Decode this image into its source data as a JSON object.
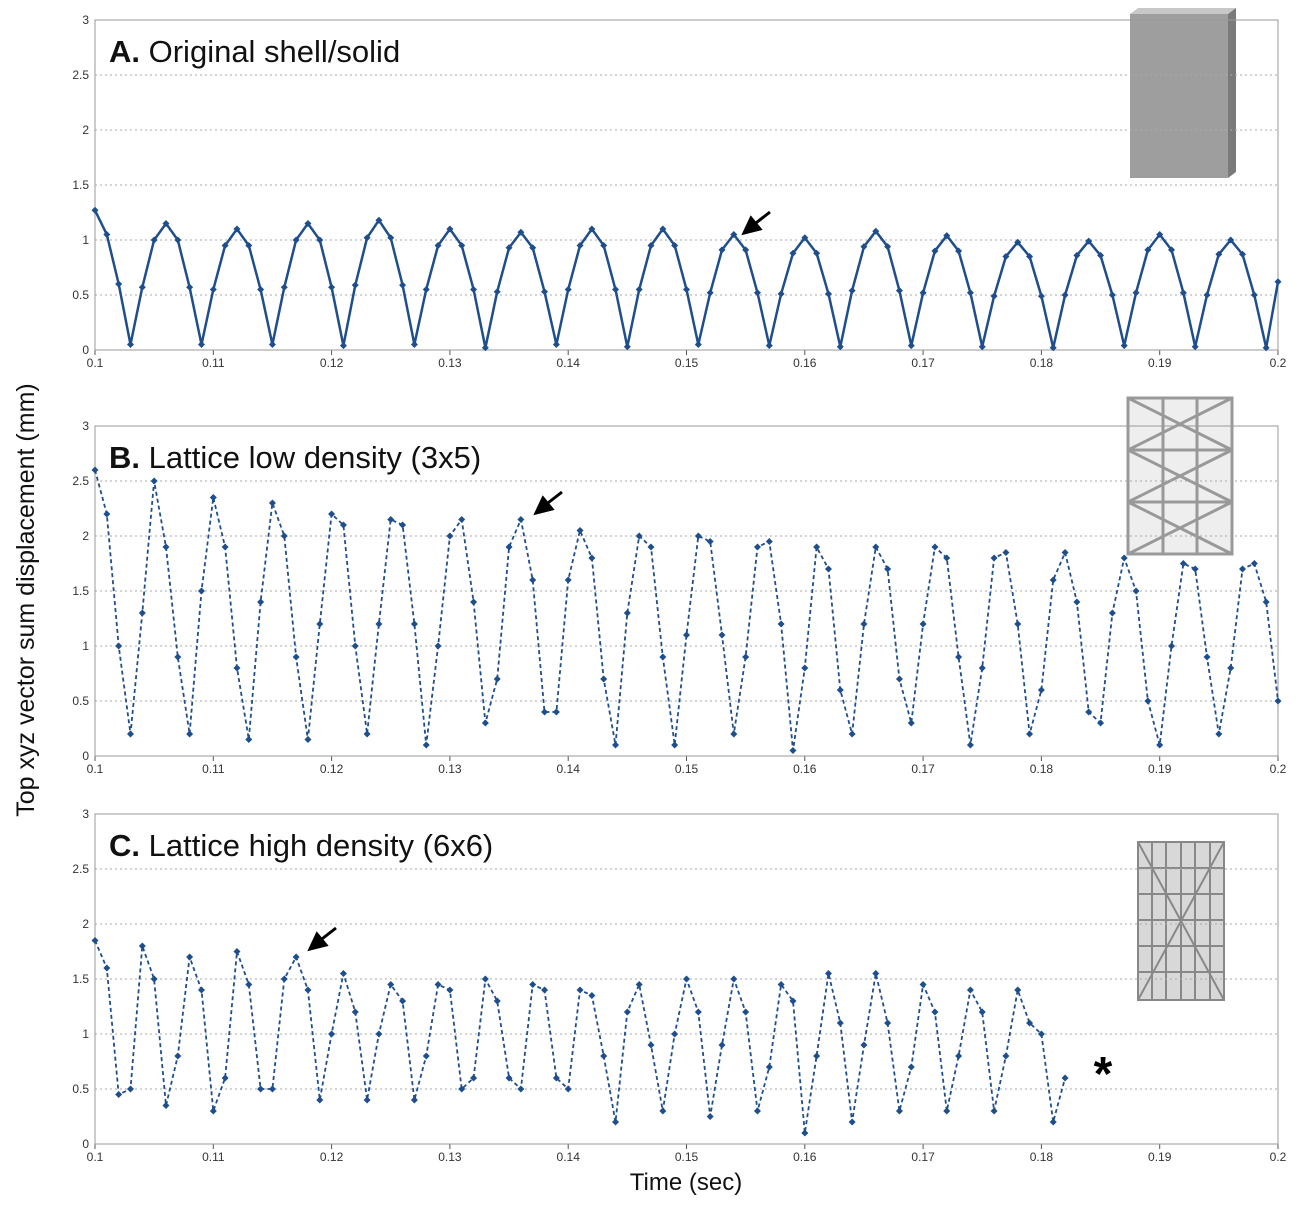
{
  "y_label": "Top xyz vector sum displacement (mm)",
  "x_label": "Time (sec)",
  "chart_data": [
    {
      "type": "line",
      "label": "A.",
      "title": "Original shell/solid",
      "color": "#1f4e8c",
      "line_style": "solid",
      "grid": true,
      "xlim": [
        0.1,
        0.2
      ],
      "xticks": [
        0.1,
        0.11,
        0.12,
        0.13,
        0.14,
        0.15,
        0.16,
        0.17,
        0.18,
        0.19,
        0.2
      ],
      "ylim": [
        0,
        3
      ],
      "yticks": [
        0,
        0.5,
        1,
        1.5,
        2,
        2.5,
        3
      ],
      "x": [
        0.1,
        0.101,
        0.102,
        0.103,
        0.104,
        0.105,
        0.106,
        0.107,
        0.108,
        0.109,
        0.11,
        0.111,
        0.112,
        0.113,
        0.114,
        0.115,
        0.116,
        0.117,
        0.118,
        0.119,
        0.12,
        0.121,
        0.122,
        0.123,
        0.124,
        0.125,
        0.126,
        0.127,
        0.128,
        0.129,
        0.13,
        0.131,
        0.132,
        0.133,
        0.134,
        0.135,
        0.136,
        0.137,
        0.138,
        0.139,
        0.14,
        0.141,
        0.142,
        0.143,
        0.144,
        0.145,
        0.146,
        0.147,
        0.148,
        0.149,
        0.15,
        0.151,
        0.152,
        0.153,
        0.154,
        0.155,
        0.156,
        0.157,
        0.158,
        0.159,
        0.16,
        0.161,
        0.162,
        0.163,
        0.164,
        0.165,
        0.166,
        0.167,
        0.168,
        0.169,
        0.17,
        0.171,
        0.172,
        0.173,
        0.174,
        0.175,
        0.176,
        0.177,
        0.178,
        0.179,
        0.18,
        0.181,
        0.182,
        0.183,
        0.184,
        0.185,
        0.186,
        0.187,
        0.188,
        0.189,
        0.19,
        0.191,
        0.192,
        0.193,
        0.194,
        0.195,
        0.196,
        0.197,
        0.198,
        0.199,
        0.2
      ],
      "values": [
        1.27,
        1.05,
        0.6,
        0.05,
        0.57,
        1.0,
        1.15,
        1.0,
        0.57,
        0.05,
        0.55,
        0.95,
        1.1,
        0.95,
        0.55,
        0.05,
        0.57,
        1.0,
        1.15,
        1.0,
        0.57,
        0.04,
        0.59,
        1.02,
        1.18,
        1.02,
        0.59,
        0.05,
        0.55,
        0.95,
        1.1,
        0.95,
        0.55,
        0.02,
        0.53,
        0.93,
        1.07,
        0.93,
        0.53,
        0.05,
        0.55,
        0.95,
        1.1,
        0.95,
        0.55,
        0.03,
        0.55,
        0.95,
        1.1,
        0.95,
        0.55,
        0.05,
        0.52,
        0.91,
        1.05,
        0.91,
        0.52,
        0.04,
        0.51,
        0.88,
        1.02,
        0.88,
        0.51,
        0.03,
        0.54,
        0.94,
        1.08,
        0.94,
        0.54,
        0.04,
        0.52,
        0.9,
        1.04,
        0.9,
        0.52,
        0.03,
        0.49,
        0.85,
        0.98,
        0.85,
        0.49,
        0.02,
        0.5,
        0.86,
        0.99,
        0.86,
        0.5,
        0.04,
        0.52,
        0.91,
        1.05,
        0.91,
        0.52,
        0.03,
        0.5,
        0.87,
        1.0,
        0.87,
        0.5,
        0.02,
        0.62
      ]
    },
    {
      "type": "line",
      "label": "B.",
      "title": "Lattice low density (3x5)",
      "color": "#1f4e8c",
      "line_style": "dashed",
      "grid": true,
      "xlim": [
        0.1,
        0.2
      ],
      "xticks": [
        0.1,
        0.11,
        0.12,
        0.13,
        0.14,
        0.15,
        0.16,
        0.17,
        0.18,
        0.19,
        0.2
      ],
      "ylim": [
        0,
        3
      ],
      "yticks": [
        0,
        0.5,
        1,
        1.5,
        2,
        2.5,
        3
      ],
      "x": [
        0.1,
        0.101,
        0.102,
        0.103,
        0.104,
        0.105,
        0.106,
        0.107,
        0.108,
        0.109,
        0.11,
        0.111,
        0.112,
        0.113,
        0.114,
        0.115,
        0.116,
        0.117,
        0.118,
        0.119,
        0.12,
        0.121,
        0.122,
        0.123,
        0.124,
        0.125,
        0.126,
        0.127,
        0.128,
        0.129,
        0.13,
        0.131,
        0.132,
        0.133,
        0.134,
        0.135,
        0.136,
        0.137,
        0.138,
        0.139,
        0.14,
        0.141,
        0.142,
        0.143,
        0.144,
        0.145,
        0.146,
        0.147,
        0.148,
        0.149,
        0.15,
        0.151,
        0.152,
        0.153,
        0.154,
        0.155,
        0.156,
        0.157,
        0.158,
        0.159,
        0.16,
        0.161,
        0.162,
        0.163,
        0.164,
        0.165,
        0.166,
        0.167,
        0.168,
        0.169,
        0.17,
        0.171,
        0.172,
        0.173,
        0.174,
        0.175,
        0.176,
        0.177,
        0.178,
        0.179,
        0.18,
        0.181,
        0.182,
        0.183,
        0.184,
        0.185,
        0.186,
        0.187,
        0.188,
        0.189,
        0.19,
        0.191,
        0.192,
        0.193,
        0.194,
        0.195,
        0.196,
        0.197,
        0.198,
        0.199,
        0.2
      ],
      "values": [
        2.6,
        2.2,
        1.0,
        0.2,
        1.3,
        2.5,
        1.9,
        0.9,
        0.2,
        1.5,
        2.35,
        1.9,
        0.8,
        0.15,
        1.4,
        2.3,
        2.0,
        0.9,
        0.15,
        1.2,
        2.2,
        2.1,
        1.0,
        0.2,
        1.2,
        2.15,
        2.1,
        1.2,
        0.1,
        1.0,
        2.0,
        2.15,
        1.4,
        0.3,
        0.7,
        1.9,
        2.15,
        1.6,
        0.4,
        0.4,
        1.6,
        2.05,
        1.8,
        0.7,
        0.1,
        1.3,
        2.0,
        1.9,
        0.9,
        0.1,
        1.1,
        2.0,
        1.95,
        1.1,
        0.2,
        0.9,
        1.9,
        1.95,
        1.2,
        0.05,
        0.8,
        1.9,
        1.7,
        0.6,
        0.2,
        1.2,
        1.9,
        1.7,
        0.7,
        0.3,
        1.2,
        1.9,
        1.8,
        0.9,
        0.1,
        0.8,
        1.8,
        1.85,
        1.2,
        0.2,
        0.6,
        1.6,
        1.85,
        1.4,
        0.4,
        0.3,
        1.3,
        1.8,
        1.5,
        0.5,
        0.1,
        1.0,
        1.75,
        1.7,
        0.9,
        0.2,
        0.8,
        1.7,
        1.75,
        1.4,
        0.5
      ]
    },
    {
      "type": "line",
      "label": "C.",
      "title": "Lattice high density (6x6)",
      "annotation": "*",
      "color": "#1f4e8c",
      "line_style": "dashed",
      "grid": true,
      "xlim": [
        0.1,
        0.2
      ],
      "xticks": [
        0.1,
        0.11,
        0.12,
        0.13,
        0.14,
        0.15,
        0.16,
        0.17,
        0.18,
        0.19,
        0.2
      ],
      "ylim": [
        0,
        3
      ],
      "yticks": [
        0,
        0.5,
        1,
        1.5,
        2,
        2.5,
        3
      ],
      "x": [
        0.1,
        0.101,
        0.102,
        0.103,
        0.104,
        0.105,
        0.106,
        0.107,
        0.108,
        0.109,
        0.11,
        0.111,
        0.112,
        0.113,
        0.114,
        0.115,
        0.116,
        0.117,
        0.118,
        0.119,
        0.12,
        0.121,
        0.122,
        0.123,
        0.124,
        0.125,
        0.126,
        0.127,
        0.128,
        0.129,
        0.13,
        0.131,
        0.132,
        0.133,
        0.134,
        0.135,
        0.136,
        0.137,
        0.138,
        0.139,
        0.14,
        0.141,
        0.142,
        0.143,
        0.144,
        0.145,
        0.146,
        0.147,
        0.148,
        0.149,
        0.15,
        0.151,
        0.152,
        0.153,
        0.154,
        0.155,
        0.156,
        0.157,
        0.158,
        0.159,
        0.16,
        0.161,
        0.162,
        0.163,
        0.164,
        0.165,
        0.166,
        0.167,
        0.168,
        0.169,
        0.17,
        0.171,
        0.172,
        0.173,
        0.174,
        0.175,
        0.176,
        0.177,
        0.178,
        0.179,
        0.18,
        0.181,
        0.182
      ],
      "values": [
        1.85,
        1.6,
        0.45,
        0.5,
        1.8,
        1.5,
        0.35,
        0.8,
        1.7,
        1.4,
        0.3,
        0.6,
        1.75,
        1.45,
        0.5,
        0.5,
        1.5,
        1.7,
        1.4,
        0.4,
        1.0,
        1.55,
        1.2,
        0.4,
        1.0,
        1.45,
        1.3,
        0.4,
        0.8,
        1.45,
        1.4,
        0.5,
        0.6,
        1.5,
        1.3,
        0.6,
        0.5,
        1.45,
        1.4,
        0.6,
        0.5,
        1.4,
        1.35,
        0.8,
        0.2,
        1.2,
        1.45,
        0.9,
        0.3,
        1.0,
        1.5,
        1.2,
        0.25,
        0.9,
        1.5,
        1.2,
        0.3,
        0.7,
        1.45,
        1.3,
        0.1,
        0.8,
        1.55,
        1.1,
        0.2,
        0.9,
        1.55,
        1.1,
        0.3,
        0.7,
        1.45,
        1.2,
        0.3,
        0.8,
        1.4,
        1.2,
        0.3,
        0.8,
        1.4,
        1.1,
        1.0,
        0.2,
        0.6
      ]
    }
  ]
}
